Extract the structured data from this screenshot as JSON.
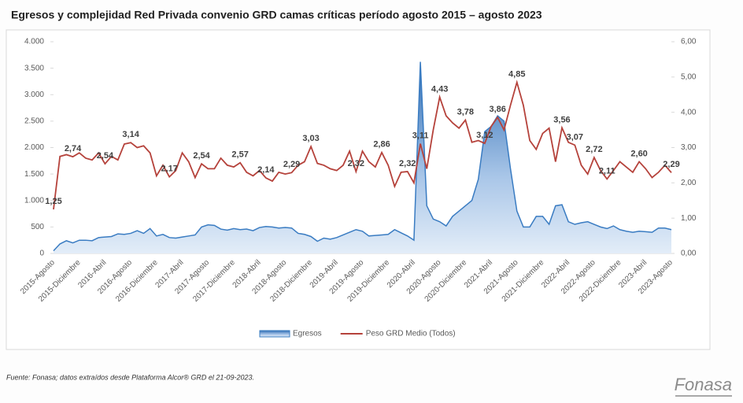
{
  "chart_data": {
    "type": "area_line_combo",
    "title": "Egresos y complejidad Red Privada convenio GRD camas críticas período agosto 2015 – agosto 2023",
    "source": "Fuente: Fonasa; datos extraídos desde Plataforma Alcor® GRD el 21-09-2023.",
    "logo": "Fonasa",
    "categories": [
      "2015-Agosto",
      null,
      null,
      null,
      "2015-Diciembre",
      null,
      null,
      null,
      "2016-Abril",
      null,
      null,
      null,
      "2016-Agosto",
      null,
      null,
      null,
      "2016-Diciembre",
      null,
      null,
      null,
      "2017-Abril",
      null,
      null,
      null,
      "2017-Agosto",
      null,
      null,
      null,
      "2017-Diciembre",
      null,
      null,
      null,
      "2018-Abril",
      null,
      null,
      null,
      "2018-Agosto",
      null,
      null,
      null,
      "2018-Diciembre",
      null,
      null,
      null,
      "2019-Abril",
      null,
      null,
      null,
      "2019-Agosto",
      null,
      null,
      null,
      "2019-Diciembre",
      null,
      null,
      null,
      "2020-Abril",
      null,
      null,
      null,
      "2020-Agosto",
      null,
      null,
      null,
      "2020-Diciembre",
      null,
      null,
      null,
      "2021-Abril",
      null,
      null,
      null,
      "2021-Agosto",
      null,
      null,
      null,
      "2021-Diciembre",
      null,
      null,
      null,
      "2022-Abril",
      null,
      null,
      null,
      "2022-Agosto",
      null,
      null,
      null,
      "2022-Diciembre",
      null,
      null,
      null,
      "2023-Abril",
      null,
      null,
      null,
      "2023-Agosto"
    ],
    "series": [
      {
        "name": "Egresos",
        "type": "area",
        "axis": "y",
        "color": "#3a7cc2",
        "values": [
          50,
          180,
          240,
          200,
          250,
          250,
          240,
          300,
          310,
          320,
          370,
          360,
          380,
          430,
          380,
          470,
          330,
          360,
          300,
          290,
          310,
          330,
          350,
          500,
          540,
          530,
          460,
          440,
          470,
          450,
          460,
          430,
          490,
          510,
          500,
          480,
          490,
          480,
          380,
          360,
          320,
          230,
          290,
          270,
          300,
          350,
          400,
          450,
          420,
          330,
          340,
          350,
          360,
          450,
          390,
          330,
          250,
          3620,
          900,
          650,
          600,
          520,
          700,
          800,
          900,
          1000,
          1400,
          2300,
          2400,
          2600,
          2500,
          1600,
          800,
          500,
          500,
          700,
          700,
          550,
          900,
          920,
          600,
          550,
          580,
          600,
          550,
          500,
          470,
          520,
          450,
          420,
          400,
          420,
          410,
          400,
          480,
          480,
          450
        ]
      },
      {
        "name": "Peso GRD Medio (Todos)",
        "type": "line",
        "axis": "y2",
        "color": "#b5423b",
        "values": [
          1.25,
          2.75,
          2.8,
          2.74,
          2.85,
          2.7,
          2.65,
          2.85,
          2.54,
          2.75,
          2.65,
          3.1,
          3.14,
          3.0,
          3.05,
          2.85,
          2.2,
          2.5,
          2.17,
          2.35,
          2.85,
          2.6,
          2.15,
          2.54,
          2.4,
          2.4,
          2.7,
          2.5,
          2.45,
          2.57,
          2.3,
          2.2,
          2.35,
          2.14,
          2.05,
          2.3,
          2.25,
          2.29,
          2.5,
          2.6,
          3.03,
          2.55,
          2.5,
          2.4,
          2.35,
          2.5,
          2.9,
          2.32,
          2.9,
          2.6,
          2.45,
          2.86,
          2.5,
          1.9,
          2.3,
          2.32,
          2.0,
          3.11,
          2.4,
          3.5,
          4.43,
          3.9,
          3.7,
          3.55,
          3.78,
          3.15,
          3.2,
          3.12,
          3.6,
          3.86,
          3.5,
          4.2,
          4.85,
          4.2,
          3.2,
          2.95,
          3.4,
          3.55,
          2.6,
          3.56,
          3.15,
          3.07,
          2.5,
          2.25,
          2.72,
          2.35,
          2.11,
          2.35,
          2.6,
          2.45,
          2.3,
          2.6,
          2.4,
          2.15,
          2.3,
          2.5,
          2.29
        ],
        "value_labels": [
          "1,25",
          null,
          null,
          "2,74",
          null,
          null,
          null,
          null,
          "2,54",
          null,
          null,
          null,
          "3,14",
          null,
          null,
          null,
          null,
          null,
          "2,17",
          null,
          null,
          null,
          null,
          "2,54",
          null,
          null,
          null,
          null,
          null,
          "2,57",
          null,
          null,
          null,
          "2,14",
          null,
          null,
          null,
          "2,29",
          null,
          null,
          "3,03",
          null,
          null,
          null,
          null,
          null,
          null,
          "2,32",
          null,
          null,
          null,
          "2,86",
          null,
          null,
          null,
          "2,32",
          null,
          "3,11",
          null,
          null,
          "4,43",
          null,
          null,
          null,
          "3,78",
          null,
          null,
          "3,12",
          null,
          "3,86",
          null,
          null,
          "4,85",
          null,
          null,
          null,
          null,
          null,
          null,
          "3,56",
          null,
          "3,07",
          null,
          null,
          "2,72",
          null,
          "2,11",
          null,
          null,
          null,
          null,
          "2,60",
          null,
          null,
          null,
          null,
          "2,29"
        ]
      }
    ],
    "ylim": [
      0,
      4000
    ],
    "yticks": [
      0,
      500,
      {
        "value": 1000,
        "label": "1.000"
      },
      {
        "value": 1500,
        "label": "1.500"
      },
      {
        "value": 2000,
        "label": "2.000"
      },
      {
        "value": 2500,
        "label": "2.500"
      },
      {
        "value": 3000,
        "label": "3.000"
      },
      {
        "value": 3500,
        "label": "3.500"
      },
      {
        "value": 4000,
        "label": "4.000"
      }
    ],
    "y2lim": [
      0,
      6
    ],
    "y2ticks": [
      {
        "value": 0,
        "label": "0,00"
      },
      {
        "value": 1,
        "label": "1,00"
      },
      {
        "value": 2,
        "label": "2,00"
      },
      {
        "value": 3,
        "label": "3,00"
      },
      {
        "value": 4,
        "label": "4,00"
      },
      {
        "value": 5,
        "label": "5,00"
      },
      {
        "value": 6,
        "label": "6,00"
      }
    ],
    "legend": "bottom"
  }
}
